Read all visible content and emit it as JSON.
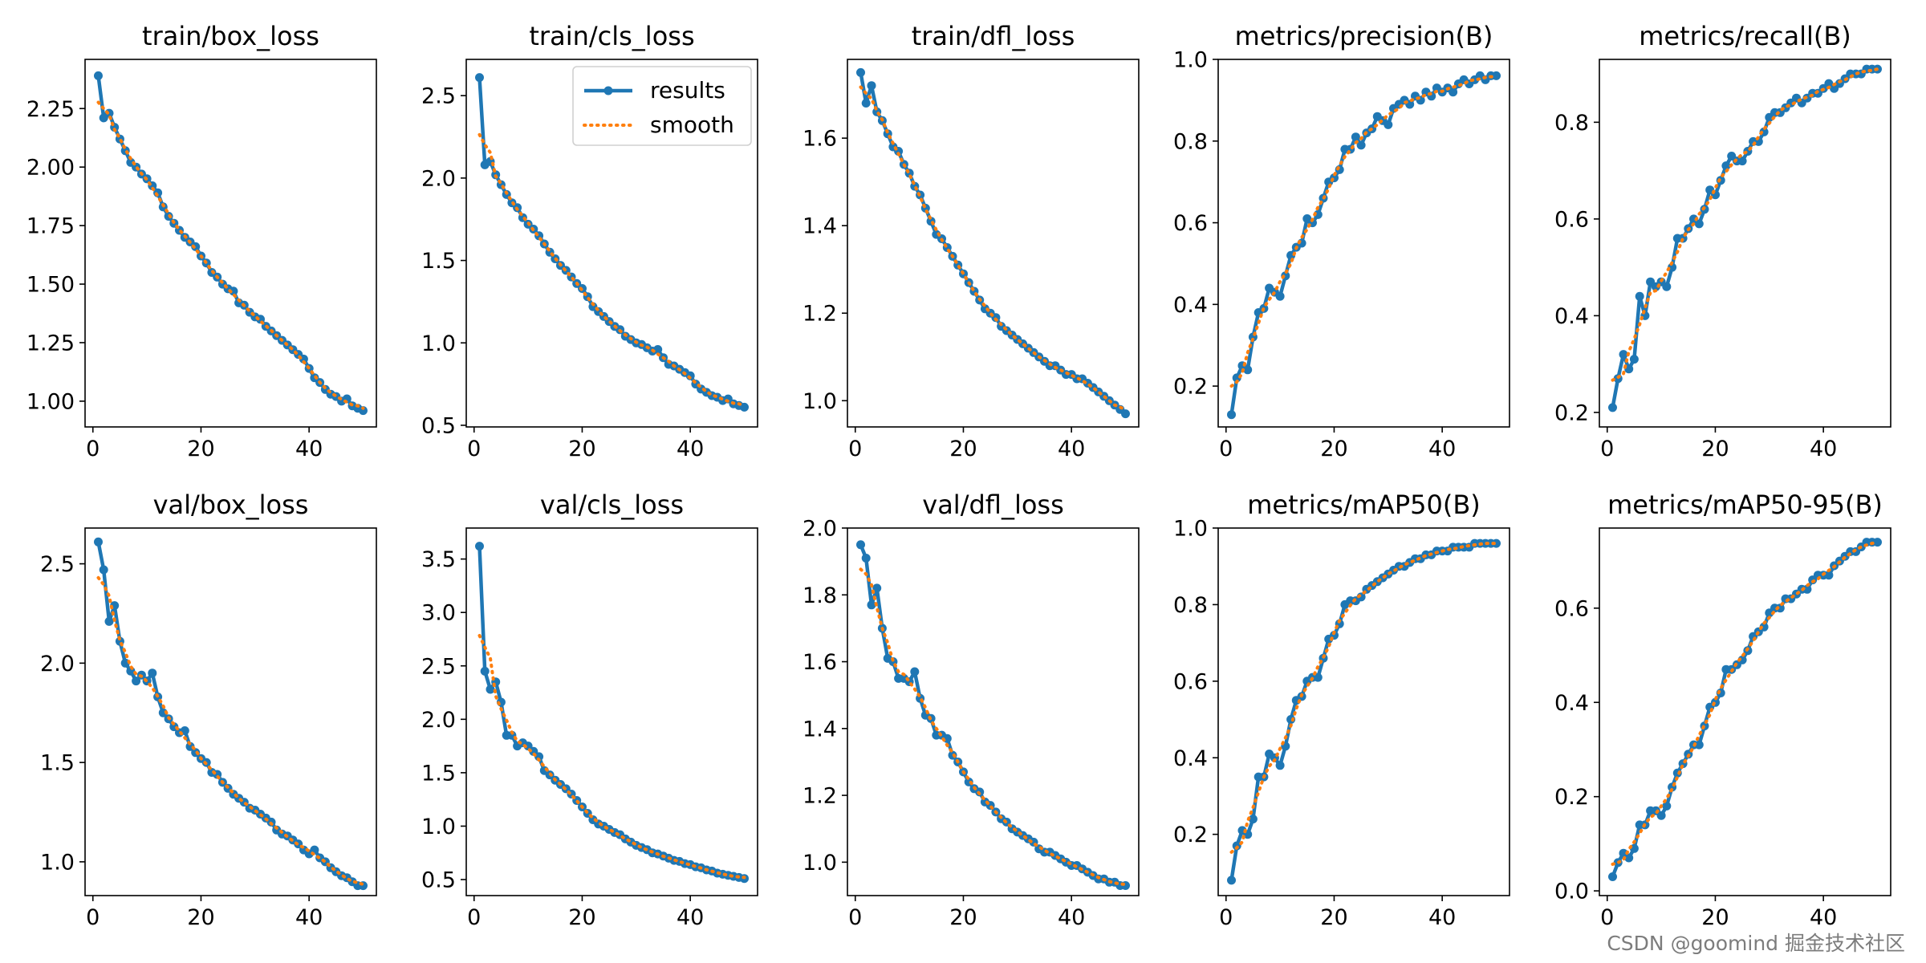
{
  "chart_data": {
    "type": "line",
    "layout": "2x5 grid",
    "series_names": {
      "raw": "results",
      "smooth": "smooth"
    },
    "legend": {
      "subplot": "train/cls_loss",
      "placement": "top-right",
      "entries": [
        "results",
        "smooth"
      ]
    },
    "x": {
      "start": 1,
      "end": 50,
      "ticks": [
        0,
        20,
        40
      ]
    },
    "colors": {
      "results": "#1f77b4",
      "smooth": "#ff7f0e",
      "axes": "#000000",
      "background": "#ffffff"
    },
    "subplots": [
      {
        "title": "train/box_loss",
        "ylim": [
          0.89,
          2.46
        ],
        "yticks": [
          "1.00",
          "1.25",
          "1.50",
          "1.75",
          "2.00",
          "2.25"
        ],
        "y": [
          2.39,
          2.21,
          2.23,
          2.17,
          2.12,
          2.07,
          2.02,
          2.0,
          1.97,
          1.95,
          1.92,
          1.89,
          1.83,
          1.79,
          1.76,
          1.73,
          1.7,
          1.68,
          1.66,
          1.62,
          1.59,
          1.55,
          1.53,
          1.5,
          1.48,
          1.47,
          1.42,
          1.41,
          1.38,
          1.36,
          1.35,
          1.32,
          1.3,
          1.28,
          1.26,
          1.24,
          1.22,
          1.2,
          1.18,
          1.14,
          1.1,
          1.08,
          1.05,
          1.03,
          1.02,
          1.0,
          1.01,
          0.98,
          0.97,
          0.96
        ]
      },
      {
        "title": "train/cls_loss",
        "ylim": [
          0.49,
          2.72
        ],
        "yticks": [
          "0.5",
          "1.0",
          "1.5",
          "2.0",
          "2.5"
        ],
        "y": [
          2.61,
          2.08,
          2.1,
          2.02,
          1.96,
          1.9,
          1.85,
          1.82,
          1.76,
          1.72,
          1.69,
          1.65,
          1.6,
          1.55,
          1.51,
          1.47,
          1.44,
          1.4,
          1.36,
          1.33,
          1.28,
          1.22,
          1.19,
          1.16,
          1.13,
          1.1,
          1.08,
          1.04,
          1.02,
          1.0,
          0.99,
          0.97,
          0.95,
          0.96,
          0.91,
          0.87,
          0.86,
          0.84,
          0.82,
          0.8,
          0.75,
          0.72,
          0.7,
          0.68,
          0.67,
          0.65,
          0.66,
          0.63,
          0.62,
          0.61
        ]
      },
      {
        "title": "train/dfl_loss",
        "ylim": [
          0.94,
          1.78
        ],
        "yticks": [
          "1.0",
          "1.2",
          "1.4",
          "1.6"
        ],
        "y": [
          1.75,
          1.68,
          1.72,
          1.66,
          1.64,
          1.61,
          1.58,
          1.57,
          1.54,
          1.52,
          1.49,
          1.47,
          1.44,
          1.41,
          1.38,
          1.37,
          1.35,
          1.33,
          1.31,
          1.29,
          1.27,
          1.25,
          1.23,
          1.21,
          1.2,
          1.19,
          1.17,
          1.16,
          1.15,
          1.14,
          1.13,
          1.12,
          1.11,
          1.1,
          1.09,
          1.08,
          1.08,
          1.07,
          1.06,
          1.06,
          1.05,
          1.05,
          1.04,
          1.03,
          1.02,
          1.01,
          1.0,
          0.99,
          0.98,
          0.97
        ]
      },
      {
        "title": "metrics/precision(B)",
        "ylim": [
          0.1,
          1.0
        ],
        "yticks": [
          "0.2",
          "0.4",
          "0.6",
          "0.8",
          "1.0"
        ],
        "y": [
          0.13,
          0.22,
          0.25,
          0.24,
          0.32,
          0.38,
          0.39,
          0.44,
          0.43,
          0.42,
          0.47,
          0.52,
          0.54,
          0.55,
          0.61,
          0.6,
          0.62,
          0.66,
          0.7,
          0.71,
          0.73,
          0.78,
          0.78,
          0.81,
          0.79,
          0.82,
          0.83,
          0.86,
          0.85,
          0.84,
          0.88,
          0.89,
          0.9,
          0.89,
          0.91,
          0.9,
          0.92,
          0.91,
          0.93,
          0.92,
          0.93,
          0.92,
          0.94,
          0.95,
          0.94,
          0.95,
          0.96,
          0.95,
          0.96,
          0.96
        ]
      },
      {
        "title": "metrics/recall(B)",
        "ylim": [
          0.17,
          0.93
        ],
        "yticks": [
          "0.2",
          "0.4",
          "0.6",
          "0.8"
        ],
        "y": [
          0.21,
          0.27,
          0.32,
          0.29,
          0.31,
          0.44,
          0.4,
          0.47,
          0.46,
          0.47,
          0.46,
          0.5,
          0.56,
          0.56,
          0.58,
          0.6,
          0.59,
          0.62,
          0.66,
          0.65,
          0.68,
          0.71,
          0.73,
          0.72,
          0.72,
          0.74,
          0.76,
          0.76,
          0.78,
          0.81,
          0.82,
          0.82,
          0.83,
          0.84,
          0.85,
          0.84,
          0.85,
          0.86,
          0.86,
          0.87,
          0.88,
          0.87,
          0.88,
          0.89,
          0.9,
          0.9,
          0.9,
          0.91,
          0.91,
          0.91
        ]
      },
      {
        "title": "val/box_loss",
        "ylim": [
          0.83,
          2.68
        ],
        "yticks": [
          "1.0",
          "1.5",
          "2.0",
          "2.5"
        ],
        "y": [
          2.61,
          2.47,
          2.21,
          2.29,
          2.11,
          2.0,
          1.96,
          1.91,
          1.94,
          1.91,
          1.95,
          1.83,
          1.75,
          1.72,
          1.68,
          1.65,
          1.66,
          1.58,
          1.55,
          1.52,
          1.5,
          1.45,
          1.44,
          1.4,
          1.37,
          1.34,
          1.32,
          1.3,
          1.27,
          1.26,
          1.24,
          1.22,
          1.2,
          1.16,
          1.14,
          1.13,
          1.11,
          1.09,
          1.06,
          1.04,
          1.06,
          1.02,
          1.0,
          0.97,
          0.95,
          0.93,
          0.92,
          0.9,
          0.88,
          0.88
        ]
      },
      {
        "title": "val/cls_loss",
        "ylim": [
          0.35,
          3.79
        ],
        "yticks": [
          "0.5",
          "1.0",
          "1.5",
          "2.0",
          "2.5",
          "3.0",
          "3.5"
        ],
        "y": [
          3.62,
          2.45,
          2.28,
          2.35,
          2.16,
          1.85,
          1.85,
          1.75,
          1.78,
          1.75,
          1.7,
          1.65,
          1.52,
          1.48,
          1.43,
          1.39,
          1.35,
          1.3,
          1.24,
          1.18,
          1.12,
          1.06,
          1.02,
          1.0,
          0.97,
          0.94,
          0.92,
          0.88,
          0.85,
          0.82,
          0.8,
          0.78,
          0.75,
          0.74,
          0.72,
          0.7,
          0.68,
          0.67,
          0.65,
          0.64,
          0.62,
          0.61,
          0.59,
          0.58,
          0.56,
          0.55,
          0.54,
          0.53,
          0.52,
          0.51
        ]
      },
      {
        "title": "val/dfl_loss",
        "ylim": [
          0.9,
          2.0
        ],
        "yticks": [
          "1.0",
          "1.2",
          "1.4",
          "1.6",
          "1.8",
          "2.0"
        ],
        "y": [
          1.95,
          1.91,
          1.77,
          1.82,
          1.7,
          1.61,
          1.6,
          1.55,
          1.55,
          1.54,
          1.57,
          1.49,
          1.44,
          1.43,
          1.38,
          1.38,
          1.37,
          1.32,
          1.3,
          1.27,
          1.24,
          1.22,
          1.21,
          1.18,
          1.17,
          1.15,
          1.13,
          1.12,
          1.1,
          1.09,
          1.08,
          1.07,
          1.06,
          1.04,
          1.03,
          1.03,
          1.02,
          1.01,
          1.0,
          0.99,
          0.99,
          0.98,
          0.97,
          0.96,
          0.95,
          0.95,
          0.94,
          0.94,
          0.93,
          0.93
        ]
      },
      {
        "title": "metrics/mAP50(B)",
        "ylim": [
          0.04,
          1.0
        ],
        "yticks": [
          "0.2",
          "0.4",
          "0.6",
          "0.8",
          "1.0"
        ],
        "y": [
          0.08,
          0.17,
          0.21,
          0.2,
          0.24,
          0.35,
          0.35,
          0.41,
          0.4,
          0.38,
          0.43,
          0.5,
          0.55,
          0.56,
          0.6,
          0.61,
          0.61,
          0.66,
          0.71,
          0.72,
          0.75,
          0.8,
          0.81,
          0.81,
          0.82,
          0.84,
          0.85,
          0.86,
          0.87,
          0.88,
          0.89,
          0.9,
          0.9,
          0.91,
          0.92,
          0.92,
          0.93,
          0.93,
          0.94,
          0.94,
          0.94,
          0.95,
          0.95,
          0.95,
          0.95,
          0.96,
          0.96,
          0.96,
          0.96,
          0.96
        ]
      },
      {
        "title": "metrics/mAP50-95(B)",
        "ylim": [
          -0.01,
          0.77
        ],
        "yticks": [
          "0.0",
          "0.2",
          "0.4",
          "0.6"
        ],
        "y": [
          0.03,
          0.06,
          0.08,
          0.07,
          0.09,
          0.14,
          0.14,
          0.17,
          0.17,
          0.16,
          0.18,
          0.22,
          0.25,
          0.27,
          0.29,
          0.31,
          0.31,
          0.35,
          0.39,
          0.4,
          0.42,
          0.47,
          0.47,
          0.48,
          0.49,
          0.51,
          0.54,
          0.55,
          0.56,
          0.59,
          0.6,
          0.6,
          0.62,
          0.62,
          0.63,
          0.64,
          0.64,
          0.66,
          0.67,
          0.67,
          0.67,
          0.69,
          0.7,
          0.71,
          0.72,
          0.72,
          0.73,
          0.74,
          0.74,
          0.74
        ]
      }
    ]
  },
  "watermark": "CSDN @goomind  掘金技术社区"
}
